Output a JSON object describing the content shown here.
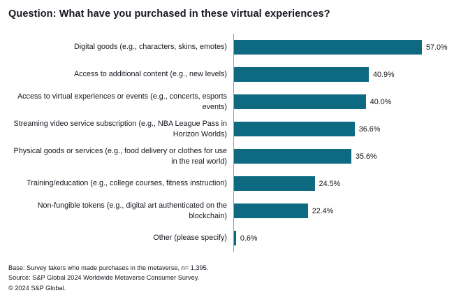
{
  "header": {
    "title": "Question: What have you purchased in these virtual experiences?"
  },
  "chart_data": {
    "type": "bar",
    "orientation": "horizontal",
    "title": "Question: What have you purchased in these virtual experiences?",
    "categories": [
      "Digital goods (e.g., characters, skins, emotes)",
      "Access to additional content (e.g., new levels)",
      "Access to virtual experiences or events (e.g., concerts, esports events)",
      "Streaming video service subscription (e.g., NBA League Pass in Horizon Worlds)",
      "Physical goods or services (e.g., food delivery or clothes for use in the real world)",
      "Training/education (e.g., college courses, fitness instruction)",
      "Non-fungible tokens (e.g., digital art authenticated on the blockchain)",
      "Other (please specify)"
    ],
    "values": [
      57.0,
      40.9,
      40.0,
      36.6,
      35.6,
      24.5,
      22.4,
      0.6
    ],
    "value_labels": [
      "57.0%",
      "40.9%",
      "40.0%",
      "36.6%",
      "35.6%",
      "24.5%",
      "22.4%",
      "0.6%"
    ],
    "xlim": [
      0,
      60
    ],
    "grid": false,
    "legend": false,
    "bar_color": "#0e6a80",
    "axis_line_color": "#9a9a9a"
  },
  "footer": {
    "base": "Base: Survey takers who made purchases in the metaverse, n= 1,395.",
    "source": "Source: S&P Global 2024 Worldwide Metaverse Consumer Survey.",
    "copyright": "© 2024 S&P Global."
  }
}
